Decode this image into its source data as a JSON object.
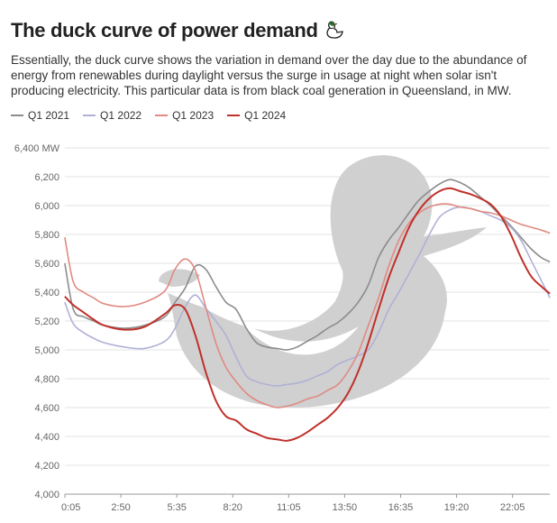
{
  "header": {
    "title": "The duck curve of power demand",
    "subtitle": "Essentially, the duck curve shows the variation in demand over the day due to the abundance of energy from renewables during daylight versus the surge in usage at night when solar isn't producing electricity. This particular data is from black coal generation in Queensland, in MW."
  },
  "chart_data": {
    "type": "line",
    "title": "The duck curve of power demand",
    "xlabel": "",
    "ylabel": "MW",
    "ylim": [
      4000,
      6400
    ],
    "y_ticks": [
      4000,
      4200,
      4400,
      4600,
      4800,
      5000,
      5200,
      5400,
      5600,
      5800,
      6000,
      6200,
      6400
    ],
    "y_tick_labels": [
      "4,000",
      "4,200",
      "4,400",
      "4,600",
      "4,800",
      "5,000",
      "5,200",
      "5,400",
      "5,600",
      "5,800",
      "6,000",
      "6,200",
      "6,400 MW"
    ],
    "x_ticks_hours": [
      0.0833,
      2.8333,
      5.5833,
      8.3333,
      11.0833,
      13.8333,
      16.5833,
      19.3333,
      22.0833
    ],
    "x_tick_labels": [
      "0:05",
      "2:50",
      "5:35",
      "8:20",
      "11:05",
      "13:50",
      "16:35",
      "19:20",
      "22:05"
    ],
    "x_range_hours": [
      0.0833,
      23.9167
    ],
    "grid": true,
    "legend": "top-left",
    "series": [
      {
        "name": "Q1 2021",
        "color": "#8c8c8c",
        "hours": [
          0.08,
          0.5,
          1,
          1.5,
          2,
          3,
          4,
          5,
          5.5,
          6,
          6.5,
          7,
          7.5,
          8,
          8.5,
          9,
          9.5,
          10,
          10.5,
          11,
          11.5,
          12,
          12.5,
          13,
          13.5,
          14,
          14.5,
          15,
          15.5,
          16,
          16.5,
          17,
          17.5,
          18,
          18.5,
          19,
          19.5,
          20,
          20.5,
          21,
          21.5,
          22,
          22.5,
          23,
          23.5,
          23.92
        ],
        "values": [
          5600,
          5280,
          5230,
          5200,
          5170,
          5150,
          5170,
          5230,
          5330,
          5430,
          5580,
          5560,
          5440,
          5330,
          5280,
          5150,
          5050,
          5020,
          5010,
          5000,
          5020,
          5060,
          5100,
          5150,
          5190,
          5250,
          5330,
          5450,
          5640,
          5760,
          5850,
          5950,
          6040,
          6100,
          6150,
          6180,
          6160,
          6120,
          6060,
          6000,
          5930,
          5860,
          5780,
          5700,
          5640,
          5610
        ]
      },
      {
        "name": "Q1 2022",
        "color": "#b0b0d6",
        "hours": [
          0.08,
          0.5,
          1,
          1.5,
          2,
          3,
          4,
          5,
          5.5,
          6,
          6.5,
          7,
          7.5,
          8,
          8.5,
          9,
          9.5,
          10,
          10.5,
          11,
          11.5,
          12,
          12.5,
          13,
          13.5,
          14,
          14.5,
          15,
          15.5,
          16,
          16.5,
          17,
          17.5,
          18,
          18.5,
          19,
          19.5,
          20,
          20.5,
          21,
          21.5,
          22,
          22.5,
          23,
          23.5,
          23.92
        ],
        "values": [
          5330,
          5180,
          5120,
          5080,
          5050,
          5020,
          5010,
          5060,
          5150,
          5300,
          5380,
          5290,
          5200,
          5100,
          4950,
          4820,
          4780,
          4760,
          4750,
          4760,
          4770,
          4790,
          4820,
          4850,
          4900,
          4930,
          4960,
          5000,
          5120,
          5280,
          5400,
          5530,
          5660,
          5800,
          5920,
          5970,
          5990,
          5980,
          5960,
          5930,
          5900,
          5850,
          5760,
          5620,
          5480,
          5360
        ]
      },
      {
        "name": "Q1 2023",
        "color": "#e08a82",
        "hours": [
          0.08,
          0.5,
          1,
          1.5,
          2,
          3,
          4,
          5,
          5.5,
          6,
          6.5,
          7,
          7.5,
          8,
          8.5,
          9,
          9.5,
          10,
          10.5,
          11,
          11.5,
          12,
          12.5,
          13,
          13.5,
          14,
          14.5,
          15,
          15.5,
          16,
          16.5,
          17,
          17.5,
          18,
          18.5,
          19,
          19.5,
          20,
          20.5,
          21,
          21.5,
          22,
          22.5,
          23,
          23.5,
          23.92
        ],
        "values": [
          5780,
          5470,
          5400,
          5360,
          5320,
          5300,
          5330,
          5410,
          5560,
          5630,
          5550,
          5300,
          5050,
          4880,
          4780,
          4700,
          4650,
          4620,
          4600,
          4610,
          4630,
          4660,
          4680,
          4720,
          4760,
          4850,
          4980,
          5170,
          5360,
          5580,
          5760,
          5880,
          5950,
          5990,
          6010,
          6010,
          5990,
          5980,
          5960,
          5950,
          5930,
          5900,
          5870,
          5850,
          5830,
          5810
        ]
      },
      {
        "name": "Q1 2024",
        "color": "#c0302a",
        "hours": [
          0.08,
          0.5,
          1,
          1.5,
          2,
          3,
          4,
          5,
          5.5,
          6,
          6.5,
          7,
          7.5,
          8,
          8.5,
          9,
          9.5,
          10,
          10.5,
          11,
          11.5,
          12,
          12.5,
          13,
          13.5,
          14,
          14.5,
          15,
          15.5,
          16,
          16.5,
          17,
          17.5,
          18,
          18.5,
          19,
          19.5,
          20,
          20.5,
          21,
          21.5,
          22,
          22.5,
          23,
          23.5,
          23.92
        ],
        "values": [
          5370,
          5310,
          5260,
          5210,
          5170,
          5140,
          5160,
          5250,
          5310,
          5280,
          5100,
          4850,
          4650,
          4540,
          4510,
          4450,
          4420,
          4390,
          4380,
          4370,
          4390,
          4430,
          4480,
          4530,
          4600,
          4700,
          4850,
          5050,
          5280,
          5500,
          5680,
          5850,
          5970,
          6050,
          6100,
          6120,
          6100,
          6080,
          6050,
          6010,
          5930,
          5800,
          5640,
          5510,
          5440,
          5390
        ]
      }
    ]
  }
}
